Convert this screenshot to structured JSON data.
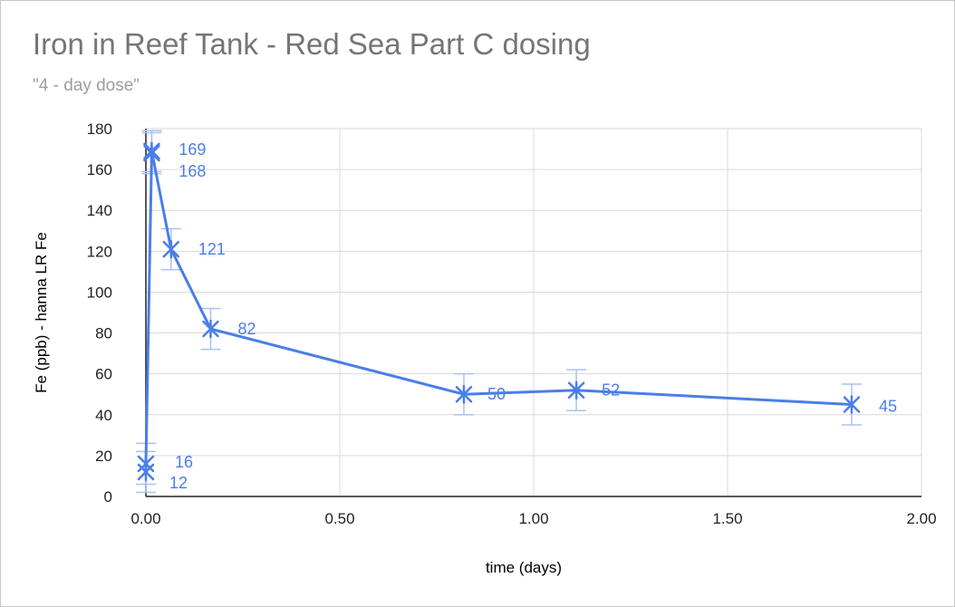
{
  "chart_data": {
    "type": "line",
    "title": "Iron in Reef Tank - Red Sea Part C dosing",
    "subtitle": "\"4 - day dose\"",
    "xlabel": "time (days)",
    "ylabel": "Fe (ppb) - hanna LR Fe",
    "xlim": [
      0,
      2
    ],
    "ylim": [
      0,
      180
    ],
    "x_ticks": [
      "0.00",
      "0.50",
      "1.00",
      "1.50",
      "2.00"
    ],
    "y_ticks": [
      "0",
      "20",
      "40",
      "60",
      "80",
      "100",
      "120",
      "140",
      "160",
      "180"
    ],
    "grid": true,
    "legend": "none",
    "series": [
      {
        "color": "#4a7ee8",
        "marker": "star",
        "error_bars": 10,
        "points": [
          {
            "x": 0.0,
            "y": 12,
            "label": "12"
          },
          {
            "x": 0.0,
            "y": 16,
            "label": "16"
          },
          {
            "x": 0.015,
            "y": 168,
            "label": "168"
          },
          {
            "x": 0.015,
            "y": 169,
            "label": "169"
          },
          {
            "x": 0.065,
            "y": 121,
            "label": "121"
          },
          {
            "x": 0.167,
            "y": 82,
            "label": "82"
          },
          {
            "x": 0.82,
            "y": 50,
            "label": "50"
          },
          {
            "x": 1.11,
            "y": 52,
            "label": "52"
          },
          {
            "x": 1.82,
            "y": 45,
            "label": "45"
          }
        ]
      }
    ]
  }
}
